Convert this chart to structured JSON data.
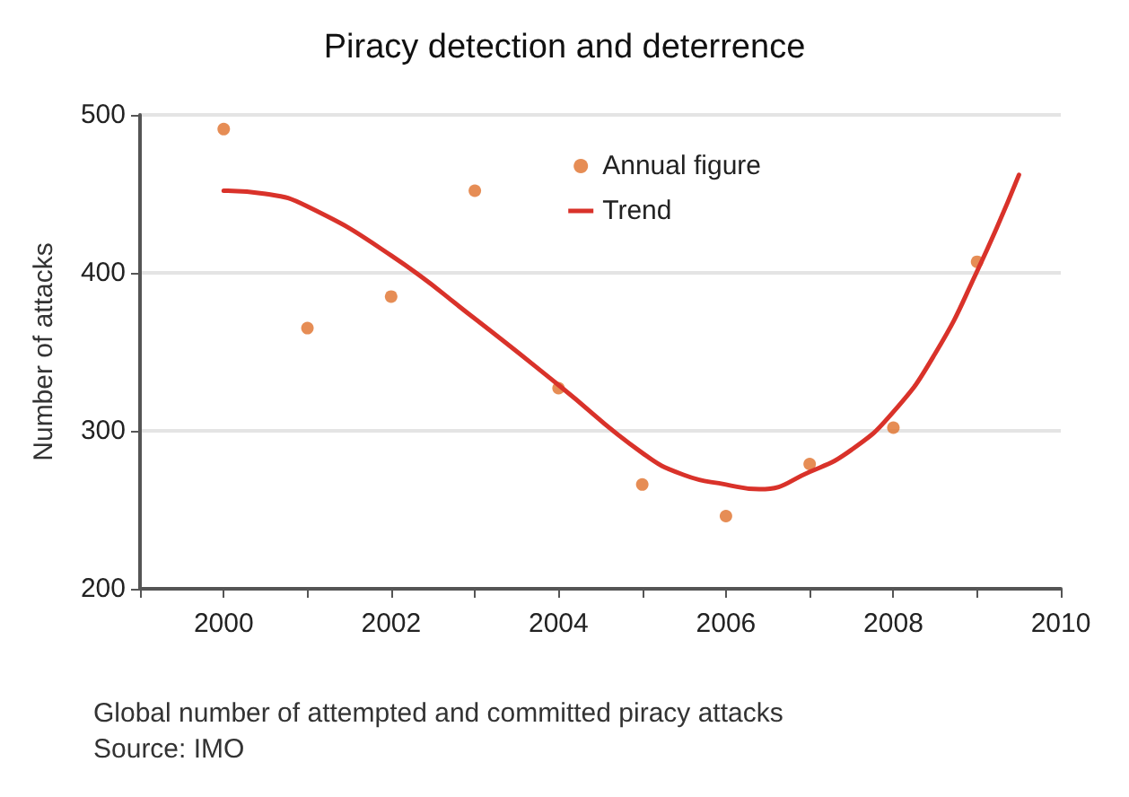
{
  "chart_data": {
    "type": "scatter",
    "title": "Piracy detection and deterrence",
    "ylabel": "Number of attacks",
    "annotations": [
      "Global number of attempted and committed piracy attacks",
      "Source: IMO"
    ],
    "xlim": [
      1999,
      2010
    ],
    "xticks": [
      {
        "value": 1999,
        "label": null
      },
      2000,
      {
        "value": 2001,
        "label": null
      },
      2002,
      {
        "value": 2003,
        "label": null
      },
      2004,
      {
        "value": 2005,
        "label": null
      },
      2006,
      {
        "value": 2007,
        "label": null
      },
      2008,
      {
        "value": 2009,
        "label": null
      },
      2010
    ],
    "ylim": [
      200,
      500
    ],
    "yticks": [
      200,
      300,
      400,
      500
    ],
    "grid": "y",
    "legend": "top right",
    "series": [
      {
        "name": "Annual figure",
        "marker": "circle",
        "color": "#e0702a",
        "x": [
          2000,
          2001,
          2002,
          2003,
          2004,
          2005,
          2006,
          2007,
          2008,
          2009
        ],
        "values": [
          491,
          365,
          385,
          452,
          327,
          266,
          246,
          279,
          302,
          407
        ]
      },
      {
        "name": "Trend",
        "type": "line",
        "marker": "none",
        "line_style": "solid",
        "color": "#d9322a",
        "x": [
          2000,
          2000.5,
          2001,
          2002,
          2003,
          2004,
          2005,
          2005.5,
          2006,
          2006.4,
          2007,
          2007.5,
          2008,
          2008.5,
          2009,
          2009.5
        ],
        "values": [
          452,
          450,
          442,
          411,
          371,
          329,
          286,
          272,
          266,
          263,
          274,
          288,
          312,
          349,
          401,
          462
        ]
      }
    ]
  }
}
